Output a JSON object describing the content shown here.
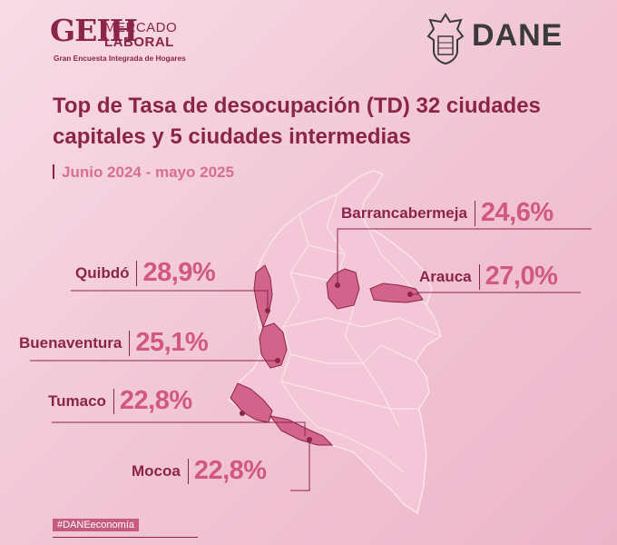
{
  "header": {
    "geih_letters": "GEIH",
    "geih_line1": "MERCADO",
    "geih_line2": "LABORAL",
    "geih_subtitle": "Gran Encuesta Integrada de Hogares",
    "dane_text": "DANE",
    "dane_icon": "coat-of-arms-icon"
  },
  "title": "Top de Tasa de desocupación (TD) 32 ciudades capitales y 5 ciudades intermedias",
  "period": "Junio 2024 - mayo 2025",
  "cities": [
    {
      "name": "Barrancabermeja",
      "value": "24,6%"
    },
    {
      "name": "Quibdó",
      "value": "28,9%"
    },
    {
      "name": "Arauca",
      "value": "27,0%"
    },
    {
      "name": "Buenaventura",
      "value": "25,1%"
    },
    {
      "name": "Tumaco",
      "value": "22,8%"
    },
    {
      "name": "Mocoa",
      "value": "22,8%"
    }
  ],
  "hashtag": "#DANEeconomía",
  "colors": {
    "primary": "#8b2449",
    "accent": "#d1587f",
    "map_base": "#f2c2d3",
    "map_highlight": "#d2638a"
  }
}
